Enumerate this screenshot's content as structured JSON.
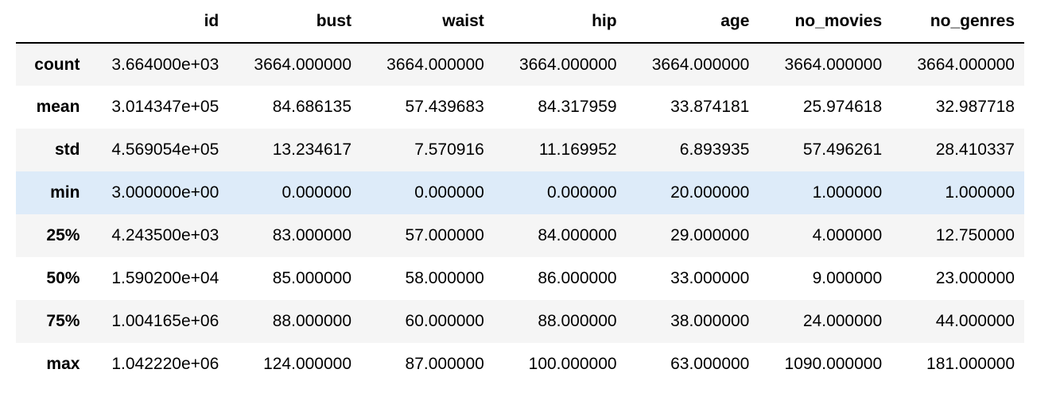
{
  "table": {
    "columns": [
      "",
      "id",
      "bust",
      "waist",
      "hip",
      "age",
      "no_movies",
      "no_genres"
    ],
    "rows": [
      {
        "label": "count",
        "cells": [
          "3.664000e+03",
          "3664.000000",
          "3664.000000",
          "3664.000000",
          "3664.000000",
          "3664.000000",
          "3664.000000"
        ]
      },
      {
        "label": "mean",
        "cells": [
          "3.014347e+05",
          "84.686135",
          "57.439683",
          "84.317959",
          "33.874181",
          "25.974618",
          "32.987718"
        ]
      },
      {
        "label": "std",
        "cells": [
          "4.569054e+05",
          "13.234617",
          "7.570916",
          "11.169952",
          "6.893935",
          "57.496261",
          "28.410337"
        ]
      },
      {
        "label": "min",
        "cells": [
          "3.000000e+00",
          "0.000000",
          "0.000000",
          "0.000000",
          "20.000000",
          "1.000000",
          "1.000000"
        ]
      },
      {
        "label": "25%",
        "cells": [
          "4.243500e+03",
          "83.000000",
          "57.000000",
          "84.000000",
          "29.000000",
          "4.000000",
          "12.750000"
        ]
      },
      {
        "label": "50%",
        "cells": [
          "1.590200e+04",
          "85.000000",
          "58.000000",
          "86.000000",
          "33.000000",
          "9.000000",
          "23.000000"
        ]
      },
      {
        "label": "75%",
        "cells": [
          "1.004165e+06",
          "88.000000",
          "60.000000",
          "88.000000",
          "38.000000",
          "24.000000",
          "44.000000"
        ]
      },
      {
        "label": "max",
        "cells": [
          "1.042220e+06",
          "124.000000",
          "87.000000",
          "100.000000",
          "63.000000",
          "1090.000000",
          "181.000000"
        ]
      }
    ]
  },
  "highlight_row_label": "min",
  "colors": {
    "odd_row": "#f5f5f5",
    "hover_row": "#ddebf9",
    "header_border": "#000000"
  }
}
